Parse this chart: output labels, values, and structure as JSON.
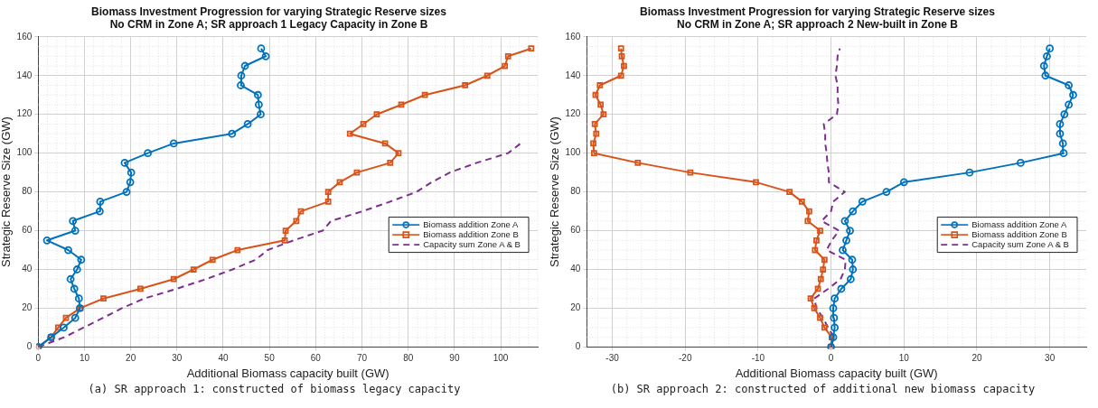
{
  "chart_data": [
    {
      "type": "line",
      "title": "Biomass Investment Progression for varying Strategic Reserve sizes",
      "subtitle": "No CRM in Zone A; SR approach 1 Legacy Capacity in Zone B",
      "xlabel": "Additional Biomass capacity built (GW)",
      "ylabel": "Strategic Reserve Size (GW)",
      "annotations": [
        "(a) SR approach 1: constructed of biomass legacy capacity"
      ],
      "xlim": [
        0,
        108
      ],
      "xticks": [
        0,
        10,
        20,
        30,
        40,
        50,
        60,
        70,
        80,
        90,
        100
      ],
      "ylim": [
        0,
        160
      ],
      "yticks": [
        0,
        20,
        40,
        60,
        80,
        100,
        120,
        140,
        160
      ],
      "grid": true,
      "legend": "right",
      "series": [
        {
          "name": "Biomass addition Zone A",
          "color": "#0072bd",
          "marker": "circle",
          "line_style": "solid",
          "x": [
            0,
            2.8,
            5.5,
            8.0,
            9.0,
            8.8,
            7.8,
            7.0,
            8.4,
            9.3,
            6.5,
            1.9,
            8.0,
            7.5,
            13.3,
            13.4,
            19.1,
            19.9,
            20.1,
            18.7,
            23.7,
            29.3,
            41.9,
            45.3,
            48.1,
            47.7,
            47.5,
            43.8,
            43.9,
            44.7,
            49.2,
            48.2
          ],
          "values": [
            0,
            5,
            10,
            15,
            20,
            25,
            30,
            35,
            40,
            45,
            50,
            55,
            60,
            65,
            70,
            75,
            80,
            85,
            90,
            95,
            100,
            105,
            110,
            115,
            120,
            125,
            130,
            135,
            140,
            145,
            150,
            154
          ]
        },
        {
          "name": "Biomass addition Zone B",
          "color": "#d95319",
          "marker": "square",
          "line_style": "solid",
          "x": [
            0,
            2.8,
            4.3,
            6.0,
            9.1,
            14.1,
            22.1,
            29.3,
            33.6,
            37.7,
            43.1,
            53.3,
            53.5,
            55.8,
            56.8,
            62.7,
            62.7,
            65.2,
            68.9,
            76.1,
            77.9,
            75.0,
            67.4,
            70.3,
            73.2,
            78.5,
            83.6,
            92.3,
            97.1,
            100.9,
            101.6,
            106.6
          ],
          "values": [
            0,
            5,
            10,
            15,
            20,
            25,
            30,
            35,
            40,
            45,
            50,
            55,
            60,
            65,
            70,
            75,
            80,
            85,
            90,
            95,
            100,
            105,
            110,
            115,
            120,
            125,
            130,
            135,
            140,
            145,
            150,
            154
          ]
        },
        {
          "name": "Capacity sum Zone A & B",
          "color": "#7e2f8e",
          "marker": "none",
          "line_style": "dashed",
          "x": [
            0,
            5.6,
            9.8,
            14.0,
            18.1,
            22.9,
            29.9,
            36.3,
            42.0,
            47.0,
            49.6,
            55.2,
            61.5,
            63.3,
            70.1,
            76.1,
            81.8,
            85.1,
            89.0,
            94.8,
            101.6,
            104.3
          ],
          "values": [
            0,
            5,
            10,
            15,
            20,
            25,
            30,
            35,
            40,
            45,
            50,
            55,
            60,
            65,
            70,
            75,
            80,
            85,
            90,
            95,
            100,
            105
          ]
        }
      ]
    },
    {
      "type": "line",
      "title": "Biomass Investment Progression for varying Strategic Reserve sizes",
      "subtitle": "No CRM in Zone A; SR approach 2 New-built in Zone B",
      "xlabel": "Additional Biomass capacity built (GW)",
      "ylabel": "Strategic Reserve Size (GW)",
      "annotations": [
        "(b) SR approach 2: constructed of additional new biomass capacity"
      ],
      "xlim": [
        -33.5,
        35
      ],
      "xticks": [
        -30,
        -20,
        -10,
        0,
        10,
        20,
        30
      ],
      "ylim": [
        0,
        160
      ],
      "yticks": [
        0,
        20,
        40,
        60,
        80,
        100,
        120,
        140,
        160
      ],
      "grid": true,
      "legend": "right",
      "series": [
        {
          "name": "Biomass addition Zone A",
          "color": "#0072bd",
          "marker": "circle",
          "line_style": "solid",
          "x": [
            0,
            0.3,
            0.5,
            0.4,
            0.3,
            0.5,
            1.4,
            2.7,
            3.0,
            2.9,
            1.6,
            2.1,
            2.6,
            1.9,
            3.0,
            4.3,
            7.6,
            10.0,
            19.0,
            26.0,
            31.9,
            31.8,
            31.4,
            31.4,
            32.0,
            32.6,
            33.2,
            32.6,
            29.4,
            29.2,
            29.6,
            30.0
          ],
          "values": [
            0,
            5,
            10,
            15,
            20,
            25,
            30,
            35,
            40,
            45,
            50,
            55,
            60,
            65,
            70,
            75,
            80,
            85,
            90,
            95,
            100,
            105,
            110,
            115,
            120,
            125,
            130,
            135,
            140,
            145,
            150,
            154
          ]
        },
        {
          "name": "Biomass addition Zone B",
          "color": "#d95319",
          "marker": "square",
          "line_style": "solid",
          "x": [
            0,
            0.1,
            -0.9,
            -1.5,
            -2.3,
            -2.8,
            -1.8,
            -1.4,
            -1.1,
            -0.9,
            -2.2,
            -2.0,
            -1.5,
            -3.2,
            -3.0,
            -4.0,
            -5.7,
            -10.3,
            -19.3,
            -26.5,
            -32.5,
            -32.6,
            -32.2,
            -32.4,
            -31.2,
            -31.6,
            -32.3,
            -31.7,
            -28.8,
            -28.4,
            -28.7,
            -28.8
          ],
          "values": [
            0,
            5,
            10,
            15,
            20,
            25,
            30,
            35,
            40,
            45,
            50,
            55,
            60,
            65,
            70,
            75,
            80,
            85,
            90,
            95,
            100,
            105,
            110,
            115,
            120,
            125,
            130,
            135,
            140,
            145,
            150,
            154
          ]
        },
        {
          "name": "Capacity sum Zone A & B",
          "color": "#7e2f8e",
          "marker": "none",
          "line_style": "dashed",
          "x": [
            0,
            0.4,
            -0.4,
            -1.1,
            -2.0,
            -2.3,
            -0.4,
            1.3,
            1.9,
            2.0,
            -0.6,
            0.1,
            1.1,
            -1.3,
            0,
            0.3,
            1.9,
            -0.3,
            -0.3,
            -0.5,
            -0.6,
            -0.8,
            -0.8,
            -1.0,
            0.8,
            1.0,
            0.9,
            0.9,
            0.6,
            0.8,
            0.9,
            1.2
          ],
          "values": [
            0,
            5,
            10,
            15,
            20,
            25,
            30,
            35,
            40,
            45,
            50,
            55,
            60,
            65,
            70,
            75,
            80,
            85,
            90,
            95,
            100,
            105,
            110,
            115,
            120,
            125,
            130,
            135,
            140,
            145,
            150,
            154
          ]
        }
      ]
    }
  ]
}
